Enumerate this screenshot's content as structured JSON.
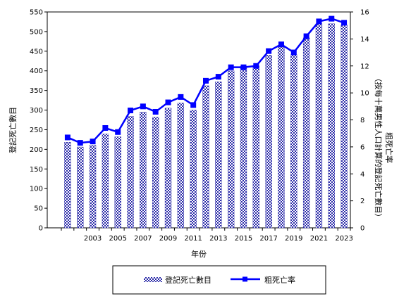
{
  "chart_data": {
    "type": "bar",
    "xlabel": "年份",
    "ylabel_left": "登記死亡數目",
    "ylabel_right": "粗死亡率（按每十萬男性人口計算的登記死亡數目）",
    "ylabel_right_main": "粗死亡率",
    "ylabel_right_note": "（按每十萬男性人口計算的登記死亡數目）",
    "ylim_left": [
      0,
      550
    ],
    "ylim_right": [
      0,
      16
    ],
    "yticks_left": [
      "0",
      "50",
      "100",
      "150",
      "200",
      "250",
      "300",
      "350",
      "400",
      "450",
      "500",
      "550"
    ],
    "yticks_right": [
      "0",
      "2",
      "4",
      "6",
      "8",
      "10",
      "12",
      "14",
      "16"
    ],
    "categories": [
      2001,
      2002,
      2003,
      2004,
      2005,
      2006,
      2007,
      2008,
      2009,
      2010,
      2011,
      2012,
      2013,
      2014,
      2015,
      2016,
      2017,
      2018,
      2019,
      2020,
      2021,
      2022,
      2023
    ],
    "xtick_labels": [
      "2003",
      "2005",
      "2007",
      "2009",
      "2011",
      "2013",
      "2015",
      "2017",
      "2019",
      "2021",
      "2023"
    ],
    "series": [
      {
        "name": "登記死亡數目",
        "type": "bar",
        "axis": "left",
        "values": [
          218,
          206,
          210,
          239,
          232,
          284,
          295,
          282,
          305,
          318,
          300,
          362,
          372,
          400,
          412,
          413,
          440,
          460,
          441,
          484,
          520,
          520,
          517
        ]
      },
      {
        "name": "粗死亡率",
        "type": "line",
        "axis": "right",
        "values": [
          6.7,
          6.3,
          6.4,
          7.4,
          7.1,
          8.7,
          9.0,
          8.6,
          9.3,
          9.7,
          9.1,
          10.9,
          11.2,
          11.9,
          11.9,
          12.0,
          13.1,
          13.6,
          13.0,
          14.2,
          15.3,
          15.5,
          15.2
        ]
      }
    ],
    "legend_position": "bottom",
    "grid": false,
    "colors": {
      "bar_fill": "#ffffff",
      "bar_pattern": "#2b2ba8",
      "line": "#0000ff",
      "marker": "#0000ff"
    }
  }
}
